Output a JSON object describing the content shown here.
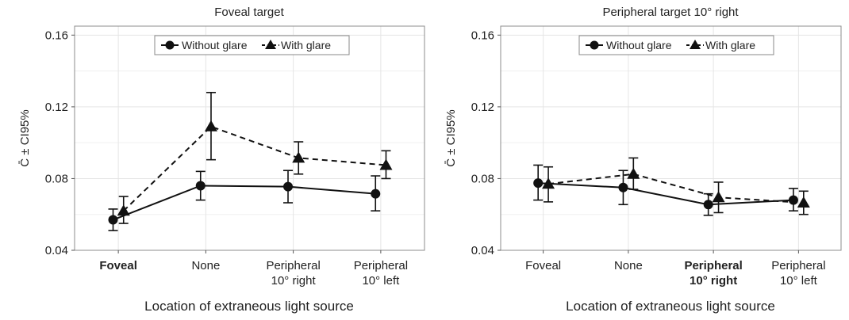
{
  "chart_data": [
    {
      "type": "line",
      "title": "Foveal target",
      "xlabel": "Location of extraneous light source",
      "ylabel": "C̄ ± CI95%",
      "ylim": [
        0.04,
        0.165
      ],
      "yticks": [
        "0.04",
        "0.08",
        "0.12",
        "0.16"
      ],
      "yticks_values": [
        0.04,
        0.08,
        0.12,
        0.16
      ],
      "categories": [
        {
          "lines": [
            "Foveal"
          ],
          "bold": true
        },
        {
          "lines": [
            "None"
          ],
          "bold": false
        },
        {
          "lines": [
            "Peripheral",
            "10° right"
          ],
          "bold": false
        },
        {
          "lines": [
            "Peripheral",
            "10° left"
          ],
          "bold": false
        }
      ],
      "grid": true,
      "legend_position": "top-center",
      "series": [
        {
          "name": "Without glare",
          "marker": "circle",
          "line": "solid",
          "values": [
            0.057,
            0.076,
            0.0755,
            0.0715
          ],
          "ci_low": [
            0.051,
            0.068,
            0.0665,
            0.062
          ],
          "ci_high": [
            0.063,
            0.084,
            0.0845,
            0.0815
          ]
        },
        {
          "name": "With glare",
          "marker": "triangle",
          "line": "dashed",
          "values": [
            0.062,
            0.109,
            0.0915,
            0.0875
          ],
          "ci_low": [
            0.055,
            0.0905,
            0.0825,
            0.08
          ],
          "ci_high": [
            0.07,
            0.128,
            0.1005,
            0.0955
          ]
        }
      ]
    },
    {
      "type": "line",
      "title": "Peripheral target 10° right",
      "xlabel": "Location of extraneous light source",
      "ylabel": "C̄ ± CI95%",
      "ylim": [
        0.04,
        0.165
      ],
      "yticks": [
        "0.04",
        "0.08",
        "0.12",
        "0.16"
      ],
      "yticks_values": [
        0.04,
        0.08,
        0.12,
        0.16
      ],
      "categories": [
        {
          "lines": [
            "Foveal"
          ],
          "bold": false
        },
        {
          "lines": [
            "None"
          ],
          "bold": false
        },
        {
          "lines": [
            "Peripheral",
            "10° right"
          ],
          "bold": true
        },
        {
          "lines": [
            "Peripheral",
            "10° left"
          ],
          "bold": false
        }
      ],
      "grid": true,
      "legend_position": "top-center",
      "series": [
        {
          "name": "Without glare",
          "marker": "circle",
          "line": "solid",
          "values": [
            0.0775,
            0.075,
            0.0655,
            0.068
          ],
          "ci_low": [
            0.068,
            0.0655,
            0.0595,
            0.062
          ],
          "ci_high": [
            0.0875,
            0.0845,
            0.0715,
            0.0745
          ]
        },
        {
          "name": "With glare",
          "marker": "triangle",
          "line": "dashed",
          "values": [
            0.077,
            0.0825,
            0.0695,
            0.0665
          ],
          "ci_low": [
            0.067,
            0.074,
            0.061,
            0.06
          ],
          "ci_high": [
            0.0865,
            0.0915,
            0.078,
            0.073
          ]
        }
      ]
    }
  ]
}
